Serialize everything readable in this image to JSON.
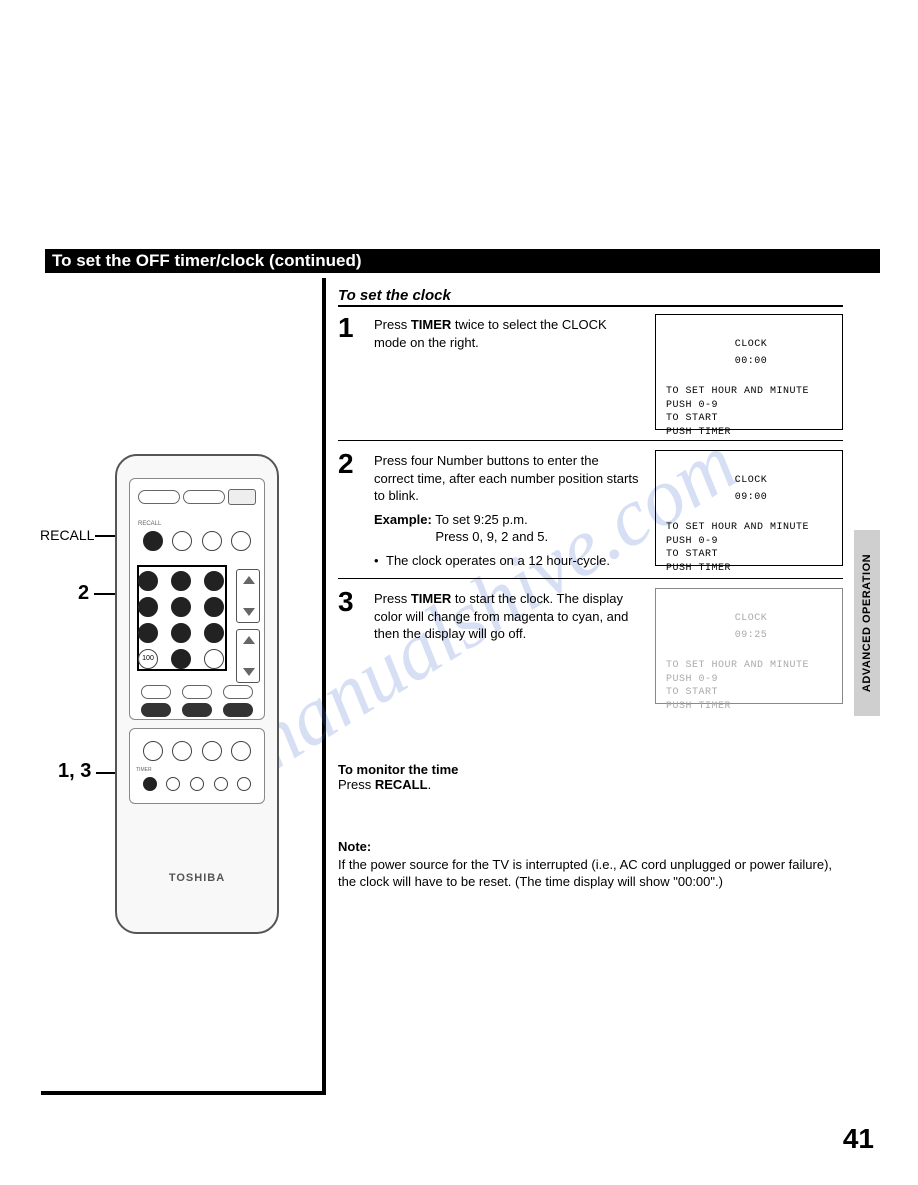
{
  "header": "To set the OFF timer/clock (continued)",
  "section_title": "To set the clock",
  "callouts": {
    "recall": "RECALL",
    "two": "2",
    "onethree": "1, 3"
  },
  "remote_brand": "TOSHIBA",
  "steps": [
    {
      "num": "1",
      "lines": [
        "Press <b>TIMER</b> twice to select the CLOCK mode on the right."
      ],
      "osd": {
        "title": "CLOCK",
        "time": "00:00",
        "l1": "TO SET HOUR AND MINUTE",
        "l2": " PUSH 0-9",
        "l3": "TO START",
        "l4": " PUSH TIMER"
      }
    },
    {
      "num": "2",
      "lines": [
        "Press four Number buttons to enter the correct time, after each number position starts to blink.",
        "<b>Example:</b> To set 9:25 p.m.<br>&nbsp;&nbsp;&nbsp;&nbsp;&nbsp;&nbsp;&nbsp;&nbsp;&nbsp;&nbsp;&nbsp;&nbsp;&nbsp;&nbsp;&nbsp;&nbsp;&nbsp;Press 0, 9, 2 and 5."
      ],
      "bullet": "The clock operates on a 12 hour-cycle.",
      "osd": {
        "title": "CLOCK",
        "time": "09:00",
        "l1": "TO SET HOUR AND MINUTE",
        "l2": " PUSH 0-9",
        "l3": "TO START",
        "l4": " PUSH TIMER"
      }
    },
    {
      "num": "3",
      "lines": [
        "Press <b>TIMER</b> to start the clock. The display color will change from magenta to cyan, and then the display will go off."
      ],
      "osd_faded": true,
      "osd": {
        "title": "CLOCK",
        "time": "09:25",
        "l1": "TO SET HOUR AND MINUTE",
        "l2": " PUSH 0-9",
        "l3": "TO START",
        "l4": " PUSH TIMER"
      }
    }
  ],
  "monitor": {
    "title": "To monitor the time",
    "body": "Press <b>RECALL</b>."
  },
  "note": {
    "title": "Note:",
    "body": "If the power source for the TV is interrupted (i.e., AC cord unplugged or power failure), the clock will have to be reset. (The time display will show \"00:00\".)"
  },
  "side_tab": "ADVANCED OPERATION",
  "page_number": "41",
  "watermark": "manualshive.com"
}
